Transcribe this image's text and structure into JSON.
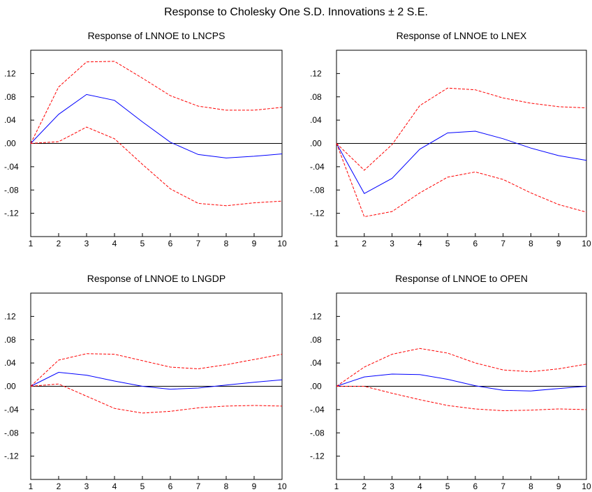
{
  "title": "Response to Cholesky One S.D. Innovations ± 2 S.E.",
  "colors": {
    "response": "#0000ff",
    "band": "#ff0000",
    "zero_line": "#000000"
  },
  "chart_data": [
    {
      "type": "line",
      "title": "Response of LNNOE to LNCPS",
      "x": [
        1,
        2,
        3,
        4,
        5,
        6,
        7,
        8,
        9,
        10
      ],
      "ylim": [
        -0.16,
        0.16
      ],
      "yticks": [
        ".12",
        ".08",
        ".04",
        ".00",
        "-.04",
        "-.08",
        "-.12"
      ],
      "grid": false,
      "series": [
        {
          "role": "response",
          "style": "solid",
          "values": [
            0.0,
            0.05,
            0.084,
            0.074,
            0.037,
            0.002,
            -0.019,
            -0.025,
            -0.022,
            -0.018
          ]
        },
        {
          "role": "upper",
          "style": "dashed",
          "values": [
            0.0,
            0.097,
            0.14,
            0.141,
            0.112,
            0.082,
            0.064,
            0.057,
            0.057,
            0.062
          ]
        },
        {
          "role": "lower",
          "style": "dashed",
          "values": [
            0.0,
            0.003,
            0.028,
            0.008,
            -0.036,
            -0.078,
            -0.103,
            -0.107,
            -0.102,
            -0.099
          ]
        }
      ]
    },
    {
      "type": "line",
      "title": "Response of LNNOE to LNEX",
      "x": [
        1,
        2,
        3,
        4,
        5,
        6,
        7,
        8,
        9,
        10
      ],
      "ylim": [
        -0.16,
        0.16
      ],
      "yticks": [
        ".12",
        ".08",
        ".04",
        ".00",
        "-.04",
        "-.08",
        "-.12"
      ],
      "grid": false,
      "series": [
        {
          "role": "response",
          "style": "solid",
          "values": [
            0.0,
            -0.086,
            -0.06,
            -0.01,
            0.018,
            0.021,
            0.008,
            -0.008,
            -0.021,
            -0.029
          ]
        },
        {
          "role": "upper",
          "style": "dashed",
          "values": [
            0.0,
            -0.046,
            -0.002,
            0.065,
            0.095,
            0.092,
            0.078,
            0.069,
            0.063,
            0.061
          ]
        },
        {
          "role": "lower",
          "style": "dashed",
          "values": [
            0.0,
            -0.126,
            -0.117,
            -0.085,
            -0.058,
            -0.049,
            -0.062,
            -0.085,
            -0.105,
            -0.118
          ]
        }
      ]
    },
    {
      "type": "line",
      "title": "Response of LNNOE to LNGDP",
      "x": [
        1,
        2,
        3,
        4,
        5,
        6,
        7,
        8,
        9,
        10
      ],
      "ylim": [
        -0.16,
        0.16
      ],
      "yticks": [
        ".12",
        ".08",
        ".04",
        ".00",
        "-.04",
        "-.08",
        "-.12"
      ],
      "grid": false,
      "series": [
        {
          "role": "response",
          "style": "solid",
          "values": [
            0.0,
            0.024,
            0.019,
            0.009,
            0.0,
            -0.005,
            -0.003,
            0.002,
            0.007,
            0.011
          ]
        },
        {
          "role": "upper",
          "style": "dashed",
          "values": [
            0.0,
            0.045,
            0.056,
            0.055,
            0.044,
            0.033,
            0.03,
            0.037,
            0.046,
            0.055
          ]
        },
        {
          "role": "lower",
          "style": "dashed",
          "values": [
            0.0,
            0.004,
            -0.017,
            -0.038,
            -0.046,
            -0.043,
            -0.037,
            -0.034,
            -0.033,
            -0.034
          ]
        }
      ]
    },
    {
      "type": "line",
      "title": "Response of LNNOE to OPEN",
      "x": [
        1,
        2,
        3,
        4,
        5,
        6,
        7,
        8,
        9,
        10
      ],
      "ylim": [
        -0.16,
        0.16
      ],
      "yticks": [
        ".12",
        ".08",
        ".04",
        ".00",
        "-.04",
        "-.08",
        "-.12"
      ],
      "grid": false,
      "series": [
        {
          "role": "response",
          "style": "solid",
          "values": [
            0.0,
            0.016,
            0.021,
            0.02,
            0.012,
            0.001,
            -0.007,
            -0.008,
            -0.004,
            0.0
          ]
        },
        {
          "role": "upper",
          "style": "dashed",
          "values": [
            0.0,
            0.033,
            0.055,
            0.065,
            0.057,
            0.04,
            0.028,
            0.025,
            0.03,
            0.038
          ]
        },
        {
          "role": "lower",
          "style": "dashed",
          "values": [
            0.0,
            0.0,
            -0.012,
            -0.023,
            -0.033,
            -0.039,
            -0.042,
            -0.041,
            -0.039,
            -0.04
          ]
        }
      ]
    }
  ]
}
